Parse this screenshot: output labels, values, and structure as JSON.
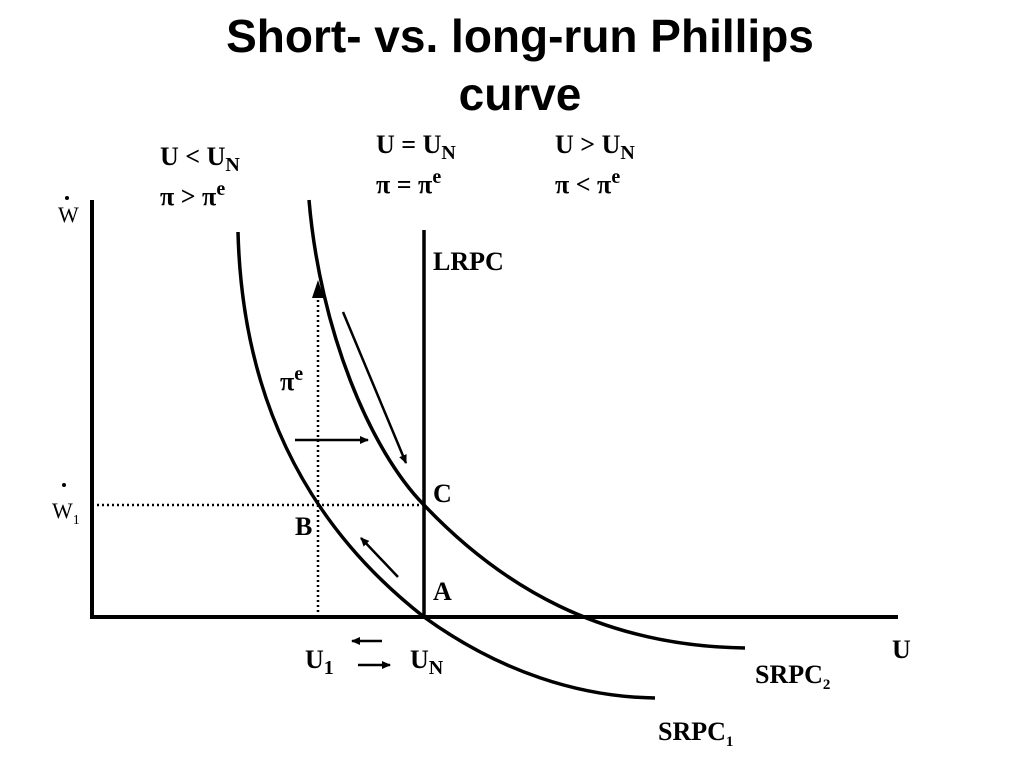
{
  "title": "Short- vs. long-run Phillips curve",
  "regions": [
    {
      "lines": [
        {
          "text": "U < U",
          "sub": "N"
        },
        {
          "text": "π > π",
          "sup": "e"
        }
      ]
    },
    {
      "lines": [
        {
          "text": "U = U",
          "sub": "N"
        },
        {
          "text": "π = π",
          "sup": "e"
        }
      ]
    },
    {
      "lines": [
        {
          "text": "U > U",
          "sub": "N"
        },
        {
          "text": "π < π",
          "sup": "e"
        }
      ]
    }
  ],
  "axes": {
    "y": {
      "text": "W"
    },
    "y_tick": {
      "text": "W",
      "sub": "1"
    },
    "x": {
      "text": "U"
    }
  },
  "x_ticks": [
    {
      "text": "U",
      "sub": "1"
    },
    {
      "text": "U",
      "sub": "N"
    }
  ],
  "points": [
    "A",
    "B",
    "C"
  ],
  "curves": {
    "lrpc": "LRPC",
    "srpc1": {
      "text": "SRPC",
      "sub": "1"
    },
    "srpc2": {
      "text": "SRPC",
      "sub": "2"
    }
  },
  "expectation": {
    "text": "π",
    "sup": "e"
  }
}
